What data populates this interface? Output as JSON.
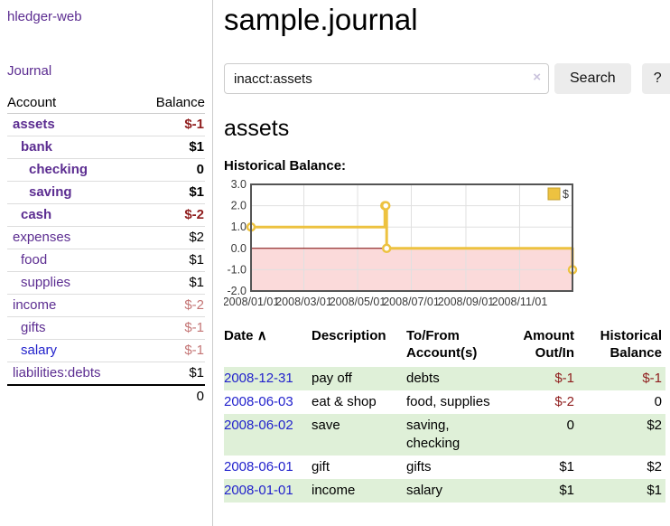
{
  "colors": {
    "link_purple": "#5c2d91",
    "link_blue": "#2222cc",
    "negative_strong": "#8f1d1d",
    "negative_soft": "#c47575",
    "row_shade_green": "#dff0d8",
    "chart_line_gold": "#edc240",
    "chart_negative_pink": "#fbdada",
    "chart_zero_line": "#7a0000",
    "chart_border_gray": "#545454",
    "button_gray": "#ececec"
  },
  "sidebar": {
    "app_title": "hledger-web",
    "journal_label": "Journal",
    "accounts_table": {
      "headers": [
        "Account",
        "Balance"
      ],
      "rows": [
        {
          "account": "assets",
          "balance": "$-1",
          "indent": 0,
          "bold": true,
          "balance_class": "neg-strong",
          "link_color": "purple"
        },
        {
          "account": "bank",
          "balance": "$1",
          "indent": 1,
          "bold": true,
          "balance_class": "pos",
          "link_color": "purple"
        },
        {
          "account": "checking",
          "balance": "0",
          "indent": 2,
          "bold": true,
          "balance_class": "pos",
          "link_color": "purple"
        },
        {
          "account": "saving",
          "balance": "$1",
          "indent": 2,
          "bold": true,
          "balance_class": "pos",
          "link_color": "purple"
        },
        {
          "account": "cash",
          "balance": "$-2",
          "indent": 1,
          "bold": true,
          "balance_class": "neg-strong",
          "link_color": "purple"
        },
        {
          "account": "expenses",
          "balance": "$2",
          "indent": 0,
          "bold": false,
          "balance_class": "pos",
          "link_color": "purple"
        },
        {
          "account": "food",
          "balance": "$1",
          "indent": 1,
          "bold": false,
          "balance_class": "pos",
          "link_color": "purple"
        },
        {
          "account": "supplies",
          "balance": "$1",
          "indent": 1,
          "bold": false,
          "balance_class": "pos",
          "link_color": "purple"
        },
        {
          "account": "income",
          "balance": "$-2",
          "indent": 0,
          "bold": false,
          "balance_class": "neg-soft",
          "link_color": "purple"
        },
        {
          "account": "gifts",
          "balance": "$-1",
          "indent": 1,
          "bold": false,
          "balance_class": "neg-soft",
          "link_color": "purple"
        },
        {
          "account": "salary",
          "balance": "$-1",
          "indent": 1,
          "bold": false,
          "balance_class": "neg-soft",
          "link_color": "blue"
        },
        {
          "account": "liabilities:debts",
          "balance": "$1",
          "indent": 0,
          "bold": false,
          "balance_class": "pos",
          "link_color": "purple"
        }
      ],
      "total": "0"
    }
  },
  "main": {
    "title": "sample.journal",
    "search": {
      "value": "inacct:assets",
      "clear_icon": "×",
      "button_label": "Search",
      "help_label": "?"
    },
    "account_heading": "assets",
    "chart_label": "Historical Balance:"
  },
  "chart_data": {
    "type": "line",
    "step": true,
    "title": "Historical Balance",
    "series": [
      {
        "name": "$",
        "color": "#edc240",
        "points": [
          {
            "date": "2008-01-01",
            "value": 1
          },
          {
            "date": "2008-06-01",
            "value": 2
          },
          {
            "date": "2008-06-02",
            "value": 2
          },
          {
            "date": "2008-06-03",
            "value": 0
          },
          {
            "date": "2008-12-31",
            "value": -1
          }
        ]
      }
    ],
    "x_tick_labels": [
      "2008/01/01",
      "2008/03/01",
      "2008/05/01",
      "2008/07/01",
      "2008/09/01",
      "2008/11/01"
    ],
    "y_ticks": [
      3,
      2,
      1,
      0,
      -1,
      -2
    ],
    "y_tick_labels": [
      "3.0",
      "2.0",
      "1.0",
      "0.0",
      "-1.0",
      "-2.0"
    ],
    "ylim": [
      -2,
      3
    ],
    "grid": true,
    "negative_region": true,
    "legend": {
      "label": "$",
      "position": "top-right"
    }
  },
  "register_table": {
    "sort_icon": "∧",
    "headers": [
      "Date",
      "Description",
      "To/From Account(s)",
      "Amount Out/In",
      "Historical Balance"
    ],
    "rows": [
      {
        "date": "2008-12-31",
        "description": "pay off",
        "accounts": "debts",
        "amount": "$-1",
        "balance": "$-1",
        "amount_negative": true,
        "balance_negative": true,
        "shaded": true
      },
      {
        "date": "2008-06-03",
        "description": "eat & shop",
        "accounts": "food, supplies",
        "amount": "$-2",
        "balance": "0",
        "amount_negative": true,
        "balance_negative": false,
        "shaded": false
      },
      {
        "date": "2008-06-02",
        "description": "save",
        "accounts": "saving, checking",
        "amount": "0",
        "balance": "$2",
        "amount_negative": false,
        "balance_negative": false,
        "shaded": true
      },
      {
        "date": "2008-06-01",
        "description": "gift",
        "accounts": "gifts",
        "amount": "$1",
        "balance": "$2",
        "amount_negative": false,
        "balance_negative": false,
        "shaded": false
      },
      {
        "date": "2008-01-01",
        "description": "income",
        "accounts": "salary",
        "amount": "$1",
        "balance": "$1",
        "amount_negative": false,
        "balance_negative": false,
        "shaded": true
      }
    ]
  }
}
